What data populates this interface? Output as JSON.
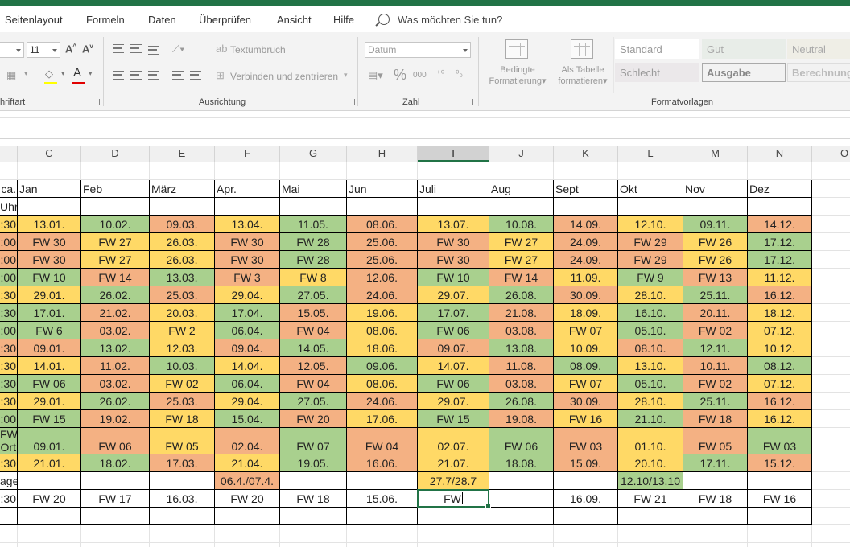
{
  "menu": [
    "Seitenlayout",
    "Formeln",
    "Daten",
    "Überprüfen",
    "Ansicht",
    "Hilfe"
  ],
  "tell_me": "Was möchten Sie tun?",
  "ribbon": {
    "font": {
      "size": "11",
      "group_label": "hriftart"
    },
    "alignment": {
      "wrap_text": "Textumbruch",
      "merge_center": "Verbinden und zentrieren",
      "group_label": "Ausrichtung"
    },
    "number": {
      "format": "Datum",
      "percent": "%",
      "thousands": "000",
      "group_label": "Zahl"
    },
    "styles": {
      "cond_format_line1": "Bedingte",
      "cond_format_line2": "Formatierung",
      "as_table_line1": "Als Tabelle",
      "as_table_line2": "formatieren",
      "cells": [
        "Standard",
        "Gut",
        "Neutral",
        "Schlecht",
        "Ausgabe",
        "Berechnung"
      ],
      "group_label": "Formatvorlagen",
      "colors": {
        "gut_bg": "#c6efce",
        "neutral_bg": "#ffeb9c",
        "schlecht_bg": "#ffc7ce",
        "ausgabe_bg": "#f2f2f2"
      }
    }
  },
  "columns": [
    "C",
    "D",
    "E",
    "F",
    "G",
    "H",
    "I",
    "J",
    "K",
    "L",
    "M",
    "N",
    "O"
  ],
  "selected_column": "I",
  "active_cell": "I20",
  "cell_colors": {
    "g": "#a9d08e",
    "o": "#f4b183",
    "y": "#ffd966"
  },
  "left_fragments": [
    "ca.",
    "Uhr",
    ":30",
    ":00",
    ":00",
    ":00",
    ":30",
    ":30",
    ":00",
    ":30",
    ":30",
    ":30",
    ":30",
    ":00",
    "FW",
    "Ort",
    ":30",
    "age",
    ":30"
  ],
  "months": [
    "Jan",
    "Feb",
    "März",
    "Apr.",
    "Mai",
    "Jun",
    "Juli",
    "Aug",
    "Sept",
    "Okt",
    "Nov",
    "Dez"
  ],
  "rows": [
    [
      [
        "13.01.",
        "y"
      ],
      [
        "10.02.",
        "g"
      ],
      [
        "09.03.",
        "o"
      ],
      [
        "13.04.",
        "y"
      ],
      [
        "11.05.",
        "g"
      ],
      [
        "08.06.",
        "o"
      ],
      [
        "13.07.",
        "y"
      ],
      [
        "10.08.",
        "g"
      ],
      [
        "14.09.",
        "o"
      ],
      [
        "12.10.",
        "y"
      ],
      [
        "09.11.",
        "g"
      ],
      [
        "14.12.",
        "o"
      ]
    ],
    [
      [
        "FW 30",
        "o"
      ],
      [
        "FW 27",
        "y"
      ],
      [
        "26.03.",
        "y"
      ],
      [
        "FW 30",
        "o"
      ],
      [
        "FW 28",
        "g"
      ],
      [
        "25.06.",
        "o"
      ],
      [
        "FW 30",
        "o"
      ],
      [
        "FW 27",
        "y"
      ],
      [
        "24.09.",
        "o"
      ],
      [
        "FW 29",
        "o"
      ],
      [
        "FW 26",
        "y"
      ],
      [
        "17.12.",
        "g"
      ]
    ],
    [
      [
        "FW 30",
        "o"
      ],
      [
        "FW 27",
        "y"
      ],
      [
        "26.03.",
        "y"
      ],
      [
        "FW 30",
        "o"
      ],
      [
        "FW 28",
        "g"
      ],
      [
        "25.06.",
        "o"
      ],
      [
        "FW 30",
        "o"
      ],
      [
        "FW 27",
        "y"
      ],
      [
        "24.09.",
        "o"
      ],
      [
        "FW 29",
        "o"
      ],
      [
        "FW 26",
        "y"
      ],
      [
        "17.12.",
        "g"
      ]
    ],
    [
      [
        "FW 10",
        "g"
      ],
      [
        "FW 14",
        "o"
      ],
      [
        "13.03.",
        "g"
      ],
      [
        "FW 3",
        "o"
      ],
      [
        "FW 8",
        "y"
      ],
      [
        "12.06.",
        "o"
      ],
      [
        "FW 10",
        "g"
      ],
      [
        "FW 14",
        "o"
      ],
      [
        "11.09.",
        "y"
      ],
      [
        "FW 9",
        "g"
      ],
      [
        "FW 13",
        "o"
      ],
      [
        "11.12.",
        "y"
      ]
    ],
    [
      [
        "29.01.",
        "y"
      ],
      [
        "26.02.",
        "g"
      ],
      [
        "25.03.",
        "o"
      ],
      [
        "29.04.",
        "y"
      ],
      [
        "27.05.",
        "g"
      ],
      [
        "24.06.",
        "o"
      ],
      [
        "29.07.",
        "y"
      ],
      [
        "26.08.",
        "g"
      ],
      [
        "30.09.",
        "o"
      ],
      [
        "28.10.",
        "y"
      ],
      [
        "25.11.",
        "g"
      ],
      [
        "16.12.",
        "o"
      ]
    ],
    [
      [
        "17.01.",
        "g"
      ],
      [
        "21.02.",
        "o"
      ],
      [
        "20.03.",
        "y"
      ],
      [
        "17.04.",
        "g"
      ],
      [
        "15.05.",
        "o"
      ],
      [
        "19.06.",
        "y"
      ],
      [
        "17.07.",
        "g"
      ],
      [
        "21.08.",
        "o"
      ],
      [
        "18.09.",
        "y"
      ],
      [
        "16.10.",
        "g"
      ],
      [
        "20.11.",
        "o"
      ],
      [
        "18.12.",
        "y"
      ]
    ],
    [
      [
        "FW 6",
        "g"
      ],
      [
        "03.02.",
        "o"
      ],
      [
        "FW 2",
        "y"
      ],
      [
        "06.04.",
        "g"
      ],
      [
        "FW 04",
        "o"
      ],
      [
        "08.06.",
        "y"
      ],
      [
        "FW 06",
        "g"
      ],
      [
        "03.08.",
        "o"
      ],
      [
        "FW 07",
        "y"
      ],
      [
        "05.10.",
        "g"
      ],
      [
        "FW 02",
        "o"
      ],
      [
        "07.12.",
        "y"
      ]
    ],
    [
      [
        "09.01.",
        "o"
      ],
      [
        "13.02.",
        "g"
      ],
      [
        "12.03.",
        "y"
      ],
      [
        "09.04.",
        "o"
      ],
      [
        "14.05.",
        "g"
      ],
      [
        "18.06.",
        "y"
      ],
      [
        "09.07.",
        "o"
      ],
      [
        "13.08.",
        "g"
      ],
      [
        "10.09.",
        "y"
      ],
      [
        "08.10.",
        "o"
      ],
      [
        "12.11.",
        "g"
      ],
      [
        "10.12.",
        "y"
      ]
    ],
    [
      [
        "14.01.",
        "y"
      ],
      [
        "11.02.",
        "o"
      ],
      [
        "10.03.",
        "g"
      ],
      [
        "14.04.",
        "y"
      ],
      [
        "12.05.",
        "o"
      ],
      [
        "09.06.",
        "g"
      ],
      [
        "14.07.",
        "y"
      ],
      [
        "11.08.",
        "o"
      ],
      [
        "08.09.",
        "g"
      ],
      [
        "13.10.",
        "y"
      ],
      [
        "10.11.",
        "o"
      ],
      [
        "08.12.",
        "g"
      ]
    ],
    [
      [
        "FW 06",
        "g"
      ],
      [
        "03.02.",
        "o"
      ],
      [
        "FW 02",
        "y"
      ],
      [
        "06.04.",
        "g"
      ],
      [
        "FW 04",
        "o"
      ],
      [
        "08.06.",
        "y"
      ],
      [
        "FW 06",
        "g"
      ],
      [
        "03.08.",
        "o"
      ],
      [
        "FW 07",
        "y"
      ],
      [
        "05.10.",
        "g"
      ],
      [
        "FW 02",
        "o"
      ],
      [
        "07.12.",
        "y"
      ]
    ],
    [
      [
        "29.01.",
        "y"
      ],
      [
        "26.02.",
        "g"
      ],
      [
        "25.03.",
        "o"
      ],
      [
        "29.04.",
        "y"
      ],
      [
        "27.05.",
        "g"
      ],
      [
        "24.06.",
        "o"
      ],
      [
        "29.07.",
        "y"
      ],
      [
        "26.08.",
        "g"
      ],
      [
        "30.09.",
        "o"
      ],
      [
        "28.10.",
        "y"
      ],
      [
        "25.11.",
        "g"
      ],
      [
        "16.12.",
        "o"
      ]
    ],
    [
      [
        "FW 15",
        "g"
      ],
      [
        "19.02.",
        "o"
      ],
      [
        "FW 18",
        "y"
      ],
      [
        "15.04.",
        "g"
      ],
      [
        "FW 20",
        "o"
      ],
      [
        "17.06.",
        "y"
      ],
      [
        "FW 15",
        "g"
      ],
      [
        "19.08.",
        "o"
      ],
      [
        "FW 16",
        "y"
      ],
      [
        "21.10.",
        "g"
      ],
      [
        "FW 18",
        "o"
      ],
      [
        "16.12.",
        "y"
      ]
    ],
    [
      [
        "09.01.",
        "g"
      ],
      [
        "FW 06",
        "o"
      ],
      [
        "FW 05",
        "y"
      ],
      [
        "02.04.",
        "o"
      ],
      [
        "FW 07",
        "g"
      ],
      [
        "FW 04",
        "o"
      ],
      [
        "02.07.",
        "y"
      ],
      [
        "FW 06",
        "g"
      ],
      [
        "FW 03",
        "o"
      ],
      [
        "01.10.",
        "y"
      ],
      [
        "FW 05",
        "o"
      ],
      [
        "FW 03",
        "g"
      ]
    ],
    [
      [
        "21.01.",
        "y"
      ],
      [
        "18.02.",
        "g"
      ],
      [
        "17.03.",
        "o"
      ],
      [
        "21.04.",
        "y"
      ],
      [
        "19.05.",
        "g"
      ],
      [
        "16.06.",
        "o"
      ],
      [
        "21.07.",
        "y"
      ],
      [
        "18.08.",
        "g"
      ],
      [
        "15.09.",
        "o"
      ],
      [
        "20.10.",
        "y"
      ],
      [
        "17.11.",
        "g"
      ],
      [
        "15.12.",
        "o"
      ]
    ],
    [
      [
        "",
        ""
      ],
      [
        "",
        ""
      ],
      [
        "",
        ""
      ],
      [
        "06.4./07.4.",
        "o"
      ],
      [
        "",
        ""
      ],
      [
        "",
        ""
      ],
      [
        "27.7/28.7",
        "y"
      ],
      [
        "",
        ""
      ],
      [
        "",
        ""
      ],
      [
        "12.10/13.10",
        "g"
      ],
      [
        "",
        ""
      ],
      [
        "",
        ""
      ]
    ],
    [
      [
        "FW 20",
        ""
      ],
      [
        "FW 17",
        ""
      ],
      [
        "16.03.",
        ""
      ],
      [
        "FW 20",
        ""
      ],
      [
        "FW 18",
        ""
      ],
      [
        "15.06.",
        ""
      ],
      [
        "FW",
        ""
      ],
      [
        "",
        ""
      ],
      [
        "16.09.",
        ""
      ],
      [
        "FW 21",
        ""
      ],
      [
        "FW 18",
        ""
      ],
      [
        "FW 16",
        ""
      ]
    ],
    [
      [
        "",
        ""
      ],
      [
        "",
        ""
      ],
      [
        "",
        ""
      ],
      [
        "",
        ""
      ],
      [
        "",
        ""
      ],
      [
        "",
        ""
      ],
      [
        "",
        ""
      ],
      [
        "",
        ""
      ],
      [
        "",
        ""
      ],
      [
        "",
        ""
      ],
      [
        "",
        ""
      ],
      [
        "",
        ""
      ]
    ]
  ]
}
